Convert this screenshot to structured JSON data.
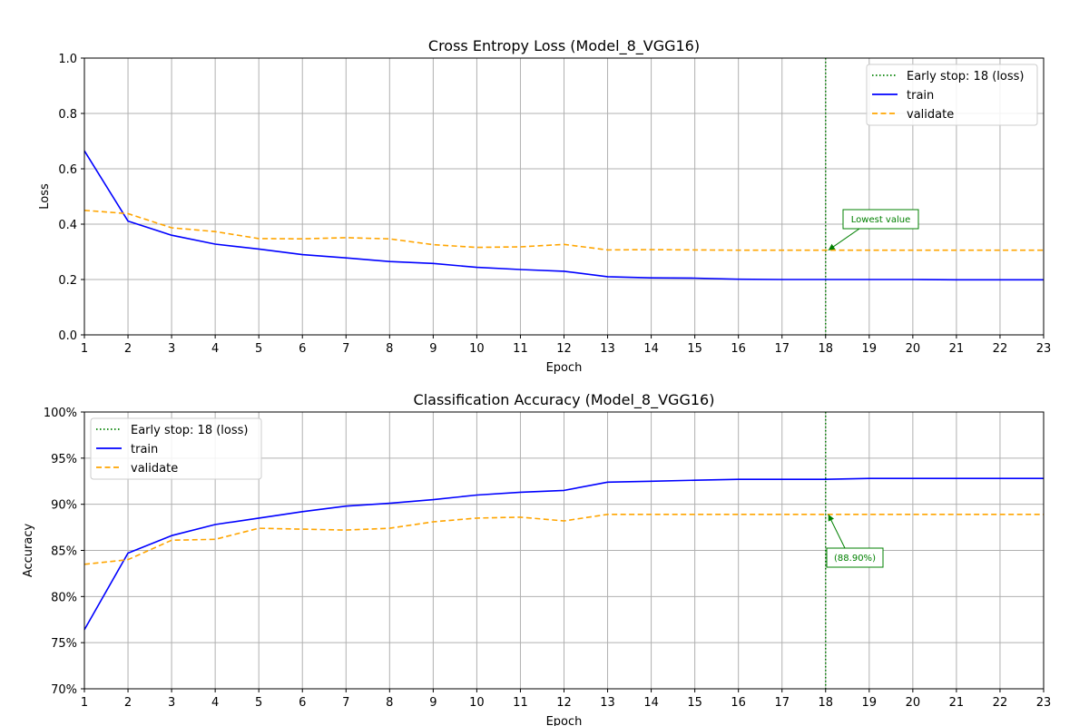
{
  "chart_data": [
    {
      "type": "line",
      "title": "Cross Entropy Loss (Model_8_VGG16)",
      "xlabel": "Epoch",
      "ylabel": "Loss",
      "xlim": [
        1,
        23
      ],
      "ylim": [
        0,
        1
      ],
      "x_ticks": [
        1,
        2,
        3,
        4,
        5,
        6,
        7,
        8,
        9,
        10,
        11,
        12,
        13,
        14,
        15,
        16,
        17,
        18,
        19,
        20,
        21,
        22,
        23
      ],
      "y_ticks": [
        0,
        0.2,
        0.4,
        0.6,
        0.8,
        1.0
      ],
      "y_tick_labels": [
        "0.0",
        "0.2",
        "0.4",
        "0.6",
        "0.8",
        "1.0"
      ],
      "grid": true,
      "legend_position": "top-right",
      "x": [
        1,
        2,
        3,
        4,
        5,
        6,
        7,
        8,
        9,
        10,
        11,
        12,
        13,
        14,
        15,
        16,
        17,
        18,
        19,
        20,
        21,
        22,
        23
      ],
      "series": [
        {
          "name": "train",
          "color": "#0000ff",
          "style": "solid",
          "values": [
            0.665,
            0.411,
            0.36,
            0.328,
            0.31,
            0.29,
            0.278,
            0.265,
            0.258,
            0.244,
            0.236,
            0.23,
            0.21,
            0.206,
            0.205,
            0.201,
            0.2,
            0.2,
            0.2,
            0.2,
            0.199,
            0.199,
            0.199
          ]
        },
        {
          "name": "validate",
          "color": "#ffa500",
          "style": "dashed",
          "values": [
            0.45,
            0.438,
            0.387,
            0.373,
            0.348,
            0.347,
            0.351,
            0.347,
            0.326,
            0.316,
            0.318,
            0.327,
            0.307,
            0.308,
            0.307,
            0.306,
            0.306,
            0.306,
            0.306,
            0.306,
            0.306,
            0.306,
            0.306
          ]
        }
      ],
      "early_stop": {
        "x": 18,
        "label": "Early stop: 18 (loss)",
        "color": "#008000"
      },
      "annotation": {
        "text": "Lowest value",
        "x": 18,
        "y": 0.306,
        "color": "#008000"
      }
    },
    {
      "type": "line",
      "title": "Classification Accuracy (Model_8_VGG16)",
      "xlabel": "Epoch",
      "ylabel": "Accuracy",
      "xlim": [
        1,
        23
      ],
      "ylim": [
        0.7,
        1.0
      ],
      "x_ticks": [
        1,
        2,
        3,
        4,
        5,
        6,
        7,
        8,
        9,
        10,
        11,
        12,
        13,
        14,
        15,
        16,
        17,
        18,
        19,
        20,
        21,
        22,
        23
      ],
      "y_ticks": [
        0.7,
        0.75,
        0.8,
        0.85,
        0.9,
        0.95,
        1.0
      ],
      "y_tick_labels": [
        "70%",
        "75%",
        "80%",
        "85%",
        "90%",
        "95%",
        "100%"
      ],
      "grid": true,
      "legend_position": "top-left",
      "x": [
        1,
        2,
        3,
        4,
        5,
        6,
        7,
        8,
        9,
        10,
        11,
        12,
        13,
        14,
        15,
        16,
        17,
        18,
        19,
        20,
        21,
        22,
        23
      ],
      "series": [
        {
          "name": "train",
          "color": "#0000ff",
          "style": "solid",
          "values": [
            0.764,
            0.847,
            0.866,
            0.878,
            0.885,
            0.892,
            0.898,
            0.901,
            0.905,
            0.91,
            0.913,
            0.915,
            0.924,
            0.925,
            0.926,
            0.927,
            0.927,
            0.927,
            0.928,
            0.928,
            0.928,
            0.928,
            0.928
          ]
        },
        {
          "name": "validate",
          "color": "#ffa500",
          "style": "dashed",
          "values": [
            0.835,
            0.84,
            0.861,
            0.862,
            0.874,
            0.873,
            0.872,
            0.874,
            0.881,
            0.885,
            0.886,
            0.882,
            0.889,
            0.889,
            0.889,
            0.889,
            0.889,
            0.889,
            0.889,
            0.889,
            0.889,
            0.889,
            0.889
          ]
        }
      ],
      "early_stop": {
        "x": 18,
        "label": "Early stop: 18 (loss)",
        "color": "#008000"
      },
      "annotation": {
        "text": "(88.90%)",
        "x": 18,
        "y": 0.889,
        "color": "#008000"
      }
    }
  ]
}
